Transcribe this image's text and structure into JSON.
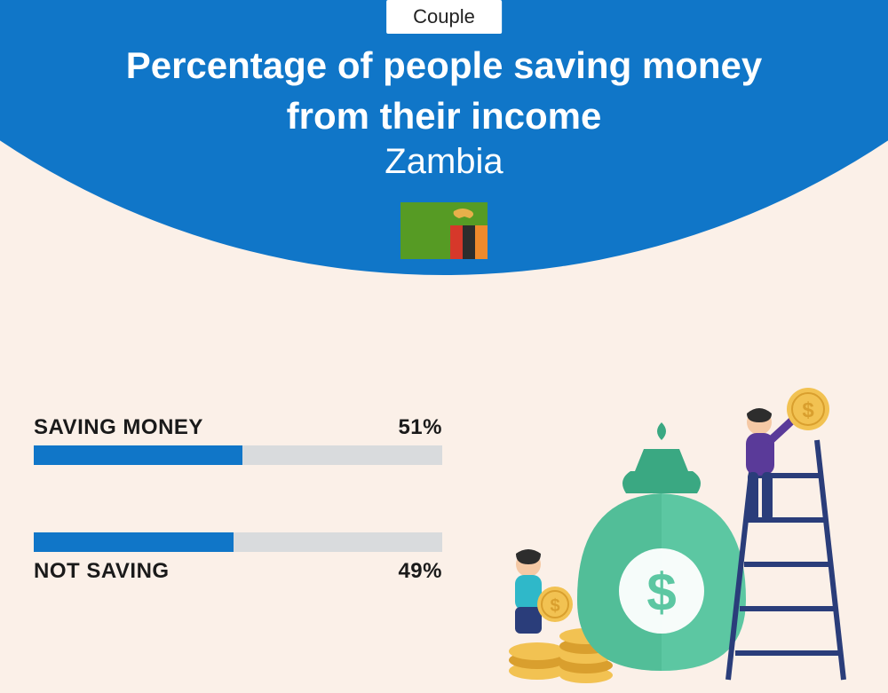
{
  "top_label": "Couple",
  "title_line1": "Percentage of people saving money",
  "title_line2": "from their income",
  "country": "Zambia",
  "flag": {
    "bg": "#569b24",
    "stripe1": "#d6382a",
    "stripe2": "#2d2d2d",
    "stripe3": "#f08a2c",
    "eagle": "#e8b04a"
  },
  "chart": {
    "type": "bar",
    "bar_bg": "#d9dbdd",
    "bar_fill": "#1076c8",
    "text_color": "#1a1a1a",
    "label_fontsize": 24,
    "bars": [
      {
        "label": "SAVING MONEY",
        "value": 51,
        "display": "51%",
        "label_position": "above"
      },
      {
        "label": "NOT SAVING",
        "value": 49,
        "display": "49%",
        "label_position": "below"
      }
    ]
  },
  "theme": {
    "header_color": "#1076c8",
    "page_bg": "#fbf0e8",
    "title_color": "#ffffff"
  },
  "illustration": {
    "bag_color": "#5cc7a2",
    "bag_shadow": "#3aa882",
    "coin_fill": "#f2c252",
    "coin_stroke": "#d99f2e",
    "person1_shirt": "#2fb8c9",
    "person1_hair": "#2d2d2d",
    "person2_shirt": "#5a3a99",
    "person2_pants": "#2a3d7a",
    "ladder": "#2a3d7a",
    "skin": "#f5c9a5"
  }
}
